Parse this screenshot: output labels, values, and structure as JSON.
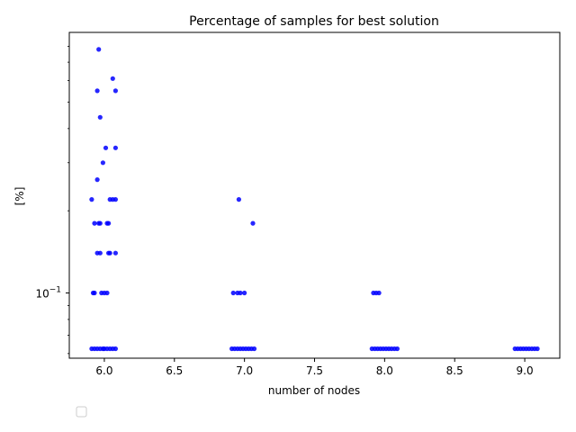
{
  "chart_data": {
    "type": "scatter",
    "title": "Percentage of samples for best solution",
    "xlabel": "number of nodes",
    "ylabel": "[%]",
    "xlim": [
      5.75,
      9.25
    ],
    "ylim": [
      0.0577,
      0.9
    ],
    "yscale": "log",
    "xticks": [
      "6.0",
      "6.5",
      "7.0",
      "7.5",
      "8.0",
      "8.5",
      "9.0"
    ],
    "yticks": [
      {
        "value": 0.1,
        "label": "10",
        "exponent": "−1"
      }
    ],
    "grid": false,
    "marker_color": "#0000ff",
    "legend": {
      "placement": "lower-left",
      "entries": []
    },
    "series": [
      {
        "points": [
          {
            "x": 5.96,
            "y": 0.78
          },
          {
            "x": 6.06,
            "y": 0.61
          },
          {
            "x": 6.08,
            "y": 0.55
          },
          {
            "x": 5.95,
            "y": 0.55
          },
          {
            "x": 5.97,
            "y": 0.44
          },
          {
            "x": 6.01,
            "y": 0.34
          },
          {
            "x": 6.08,
            "y": 0.34
          },
          {
            "x": 5.99,
            "y": 0.3
          },
          {
            "x": 5.95,
            "y": 0.26
          },
          {
            "x": 5.91,
            "y": 0.22
          },
          {
            "x": 6.04,
            "y": 0.22
          },
          {
            "x": 6.06,
            "y": 0.22
          },
          {
            "x": 6.08,
            "y": 0.22
          },
          {
            "x": 5.93,
            "y": 0.18
          },
          {
            "x": 5.96,
            "y": 0.18
          },
          {
            "x": 5.97,
            "y": 0.18
          },
          {
            "x": 6.02,
            "y": 0.18
          },
          {
            "x": 6.03,
            "y": 0.18
          },
          {
            "x": 5.95,
            "y": 0.14
          },
          {
            "x": 5.97,
            "y": 0.14
          },
          {
            "x": 6.03,
            "y": 0.14
          },
          {
            "x": 6.04,
            "y": 0.14
          },
          {
            "x": 6.08,
            "y": 0.14
          },
          {
            "x": 5.92,
            "y": 0.1
          },
          {
            "x": 5.93,
            "y": 0.1
          },
          {
            "x": 5.98,
            "y": 0.1
          },
          {
            "x": 6.0,
            "y": 0.1
          },
          {
            "x": 6.02,
            "y": 0.1
          },
          {
            "x": 5.91,
            "y": 0.0625
          },
          {
            "x": 5.93,
            "y": 0.0625
          },
          {
            "x": 5.95,
            "y": 0.0625
          },
          {
            "x": 5.97,
            "y": 0.0625
          },
          {
            "x": 5.99,
            "y": 0.0625
          },
          {
            "x": 6.0,
            "y": 0.0625
          },
          {
            "x": 6.02,
            "y": 0.0625
          },
          {
            "x": 6.04,
            "y": 0.0625
          },
          {
            "x": 6.06,
            "y": 0.0625
          },
          {
            "x": 6.08,
            "y": 0.0625
          },
          {
            "x": 6.96,
            "y": 0.22
          },
          {
            "x": 7.06,
            "y": 0.18
          },
          {
            "x": 6.92,
            "y": 0.1
          },
          {
            "x": 6.95,
            "y": 0.1
          },
          {
            "x": 6.97,
            "y": 0.1
          },
          {
            "x": 7.0,
            "y": 0.1
          },
          {
            "x": 6.91,
            "y": 0.0625
          },
          {
            "x": 6.93,
            "y": 0.0625
          },
          {
            "x": 6.95,
            "y": 0.0625
          },
          {
            "x": 6.97,
            "y": 0.0625
          },
          {
            "x": 6.99,
            "y": 0.0625
          },
          {
            "x": 7.01,
            "y": 0.0625
          },
          {
            "x": 7.03,
            "y": 0.0625
          },
          {
            "x": 7.05,
            "y": 0.0625
          },
          {
            "x": 7.07,
            "y": 0.0625
          },
          {
            "x": 7.92,
            "y": 0.1
          },
          {
            "x": 7.94,
            "y": 0.1
          },
          {
            "x": 7.96,
            "y": 0.1
          },
          {
            "x": 7.91,
            "y": 0.0625
          },
          {
            "x": 7.93,
            "y": 0.0625
          },
          {
            "x": 7.95,
            "y": 0.0625
          },
          {
            "x": 7.97,
            "y": 0.0625
          },
          {
            "x": 7.99,
            "y": 0.0625
          },
          {
            "x": 8.01,
            "y": 0.0625
          },
          {
            "x": 8.03,
            "y": 0.0625
          },
          {
            "x": 8.05,
            "y": 0.0625
          },
          {
            "x": 8.07,
            "y": 0.0625
          },
          {
            "x": 8.09,
            "y": 0.0625
          },
          {
            "x": 8.93,
            "y": 0.0625
          },
          {
            "x": 8.95,
            "y": 0.0625
          },
          {
            "x": 8.97,
            "y": 0.0625
          },
          {
            "x": 8.99,
            "y": 0.0625
          },
          {
            "x": 9.01,
            "y": 0.0625
          },
          {
            "x": 9.03,
            "y": 0.0625
          },
          {
            "x": 9.05,
            "y": 0.0625
          },
          {
            "x": 9.07,
            "y": 0.0625
          },
          {
            "x": 9.09,
            "y": 0.0625
          }
        ]
      }
    ]
  }
}
